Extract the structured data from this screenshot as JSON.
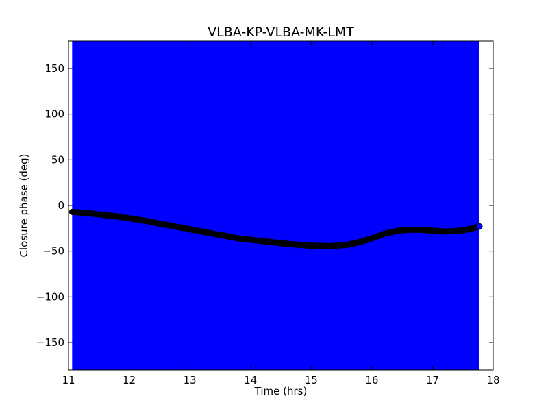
{
  "chart_data": {
    "type": "scatter",
    "title": "VLBA-KP-VLBA-MK-LMT",
    "xlabel": "Time (hrs)",
    "ylabel": "Closure phase (deg)",
    "xlim": [
      11,
      18
    ],
    "ylim": [
      -180,
      180
    ],
    "xticks": [
      11,
      12,
      13,
      14,
      15,
      16,
      17,
      18
    ],
    "yticks": [
      -150,
      -100,
      -50,
      0,
      50,
      100,
      150
    ],
    "grid": false,
    "legend": "none",
    "colors": {
      "error_band": "#0000ff",
      "points": "#000000",
      "last_point": "#0000ff",
      "background": "#ffffff"
    },
    "error_band": {
      "x_start": 11.06,
      "x_end": 17.77,
      "y_range": [
        -180,
        180
      ]
    },
    "series": [
      {
        "x": [
          11.06,
          11.4,
          11.8,
          12.2,
          12.6,
          13.0,
          13.4,
          13.8,
          14.2,
          14.6,
          15.0,
          15.3,
          15.6,
          15.8,
          16.0,
          16.2,
          16.4,
          16.6,
          16.8,
          17.0,
          17.2,
          17.4,
          17.6,
          17.77
        ],
        "y": [
          -7,
          -9,
          -12,
          -16,
          -21,
          -26,
          -31,
          -36,
          -39,
          -42,
          -44,
          -44.5,
          -43,
          -40,
          -36,
          -31,
          -28,
          -26.5,
          -26.5,
          -27.5,
          -28.5,
          -28,
          -26,
          -23
        ]
      }
    ]
  }
}
